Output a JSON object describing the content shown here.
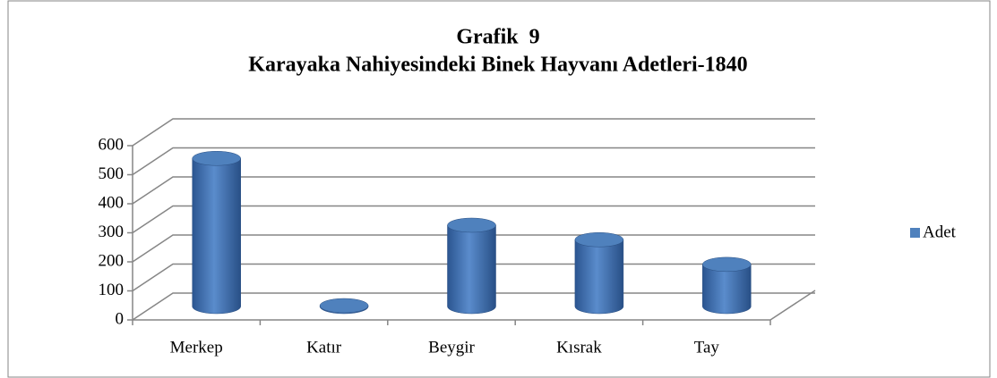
{
  "chart_data": {
    "type": "bar3d",
    "title": "Grafik  9",
    "subtitle": "Karayaka Nahiyesindeki Binek Hayvanı Adetleri-1840",
    "categories": [
      "Merkep",
      "Katır",
      "Beygir",
      "Kısrak",
      "Tay"
    ],
    "series": [
      {
        "name": "Adet",
        "color": "#4f81bd",
        "values": [
          510,
          3,
          280,
          230,
          145
        ]
      }
    ],
    "ylim": [
      0,
      600
    ],
    "yticks": [
      0,
      100,
      200,
      300,
      400,
      500,
      600
    ],
    "grid": true,
    "legend": "right"
  }
}
